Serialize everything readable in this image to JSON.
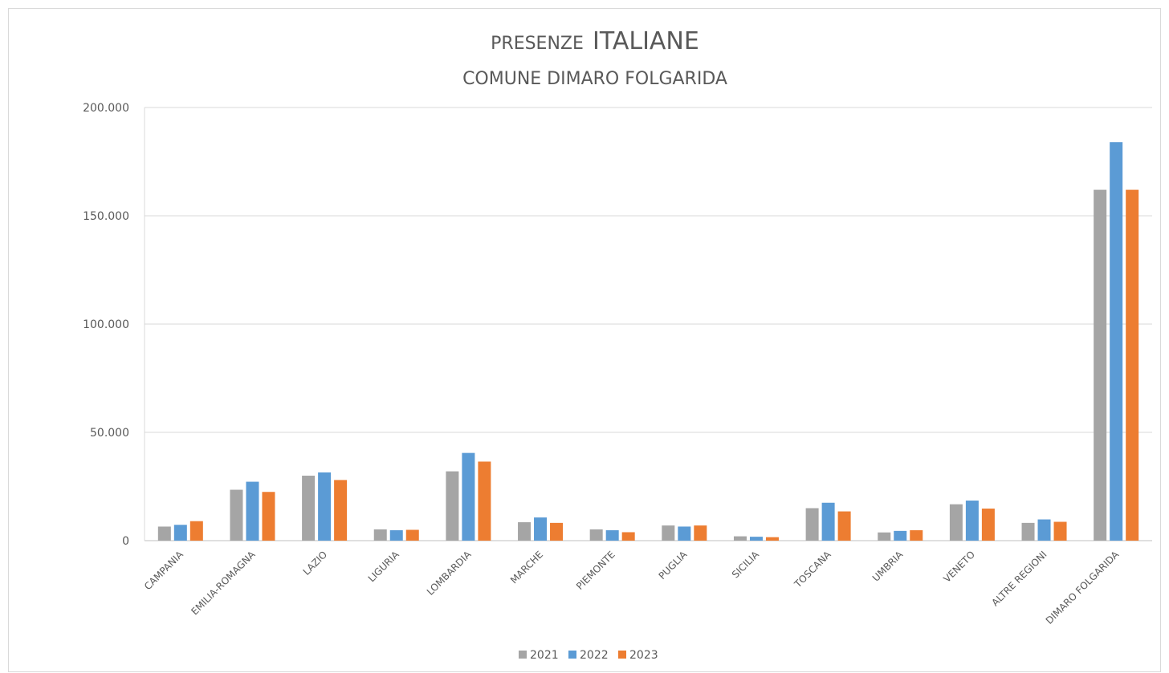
{
  "chart_data": {
    "type": "bar",
    "title_prefix": "PRESENZE",
    "title_main": "ITALIANE",
    "subtitle": "COMUNE DIMARO FOLGARIDA",
    "xlabel": "",
    "ylabel": "",
    "ylim": [
      0,
      200000
    ],
    "y_ticks": [
      0,
      50000,
      100000,
      150000,
      200000
    ],
    "y_tick_labels": [
      "0",
      "50.000",
      "100.000",
      "150.000",
      "200.000"
    ],
    "grid": true,
    "legend_position": "bottom",
    "categories": [
      "CAMPANIA",
      "EMILIA-ROMAGNA",
      "LAZIO",
      "LIGURIA",
      "LOMBARDIA",
      "MARCHE",
      "PIEMONTE",
      "PUGLIA",
      "SICILIA",
      "TOSCANA",
      "UMBRIA",
      "VENETO",
      "ALTRE REGIONI",
      "DIMARO FOLGARIDA"
    ],
    "series": [
      {
        "name": "2021",
        "color": "#a5a5a5",
        "values": [
          6500,
          23500,
          30000,
          5200,
          32000,
          8500,
          5200,
          7000,
          2000,
          15000,
          3800,
          16800,
          8200,
          162000
        ]
      },
      {
        "name": "2022",
        "color": "#5b9bd5",
        "values": [
          7300,
          27200,
          31500,
          4800,
          40500,
          10700,
          4800,
          6500,
          1800,
          17500,
          4500,
          18500,
          9800,
          184000
        ]
      },
      {
        "name": "2023",
        "color": "#ed7d31",
        "values": [
          9000,
          22500,
          28000,
          5000,
          36500,
          8200,
          3900,
          7000,
          1600,
          13500,
          4800,
          14800,
          8700,
          162000
        ]
      }
    ]
  }
}
